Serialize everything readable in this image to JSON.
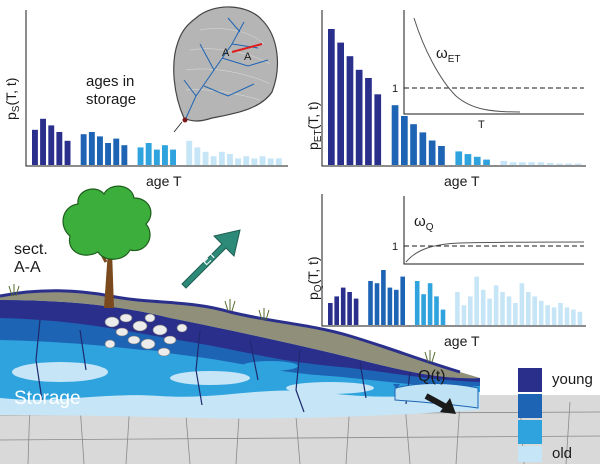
{
  "colors": {
    "young": "#2a2f8c",
    "mid_young": "#1e64b4",
    "mid_old": "#2ea3de",
    "old": "#c6e6f7",
    "et_arrow": "#2e8a78",
    "tree": "#3cae3c",
    "ground": "#8f8f7a",
    "bedrock": "#d9d9d9"
  },
  "panel_storage": {
    "ylabel_main": "p",
    "ylabel_sub": "S",
    "ylabel_args": "(T, t)",
    "xlabel": "age T",
    "annotation_line1": "ages in",
    "annotation_line2": "storage"
  },
  "panel_et": {
    "ylabel_main": "p",
    "ylabel_sub": "ET",
    "ylabel_args": "(T, t)",
    "xlabel": "age T",
    "inset_label_main": "ω",
    "inset_label_sub": "ET",
    "inset_y_tick": "1",
    "inset_x_label": "T"
  },
  "panel_q": {
    "ylabel_main": "p",
    "ylabel_sub": "Q",
    "ylabel_args": "(T, t)",
    "xlabel": "age T",
    "inset_label_main": "ω",
    "inset_label_sub": "Q",
    "inset_y_tick": "1"
  },
  "catchment": {
    "section_label_left": "A",
    "section_label_right": "A"
  },
  "cross_section": {
    "title_line1": "sect.",
    "title_line2": "A-A",
    "storage_label": "Storage",
    "discharge_label": "Q(t)",
    "et_label": "ET"
  },
  "legend": {
    "young_label": "young",
    "old_label": "old"
  },
  "chart_data": [
    {
      "type": "bar",
      "name": "storage",
      "values": [
        0.32,
        0.42,
        0.36,
        0.3,
        0.22,
        0.28,
        0.3,
        0.26,
        0.2,
        0.24,
        0.18,
        0.16,
        0.2,
        0.14,
        0.18,
        0.14,
        0.22,
        0.16,
        0.12,
        0.08,
        0.12,
        0.1,
        0.06,
        0.08,
        0.06,
        0.08,
        0.06,
        0.06
      ],
      "groups": [
        0,
        0,
        0,
        0,
        0,
        1,
        1,
        1,
        1,
        1,
        1,
        2,
        2,
        2,
        2,
        2,
        3,
        3,
        3,
        3,
        3,
        3,
        3,
        3,
        3,
        3,
        3,
        3
      ]
    },
    {
      "type": "bar",
      "name": "evapotranspiration",
      "values": [
        1.0,
        0.9,
        0.8,
        0.7,
        0.64,
        0.52,
        0.44,
        0.36,
        0.3,
        0.24,
        0.18,
        0.14,
        0.1,
        0.08,
        0.06,
        0.04,
        0.03,
        0.02,
        0.02,
        0.02,
        0.02,
        0.015,
        0.01,
        0.01,
        0.01
      ],
      "groups": [
        0,
        0,
        0,
        0,
        0,
        0,
        1,
        1,
        1,
        1,
        1,
        1,
        2,
        2,
        2,
        2,
        3,
        3,
        3,
        3,
        3,
        3,
        3,
        3,
        3
      ],
      "inset": {
        "curve": "decreasing",
        "reference_line": 1
      }
    },
    {
      "type": "bar",
      "name": "discharge",
      "values": [
        0.2,
        0.26,
        0.34,
        0.3,
        0.24,
        0.4,
        0.38,
        0.5,
        0.34,
        0.32,
        0.44,
        0.4,
        0.28,
        0.38,
        0.26,
        0.14,
        0.3,
        0.18,
        0.26,
        0.44,
        0.32,
        0.24,
        0.36,
        0.3,
        0.26,
        0.2,
        0.38,
        0.3,
        0.26,
        0.22,
        0.18,
        0.16,
        0.2,
        0.16,
        0.14,
        0.12
      ],
      "groups": [
        0,
        0,
        0,
        0,
        0,
        1,
        1,
        1,
        1,
        1,
        1,
        2,
        2,
        2,
        2,
        2,
        3,
        3,
        3,
        3,
        3,
        3,
        3,
        3,
        3,
        3,
        3,
        3,
        3,
        3,
        3,
        3,
        3,
        3,
        3,
        3
      ],
      "inset": {
        "curve": "increasing",
        "reference_line": 1
      }
    }
  ]
}
